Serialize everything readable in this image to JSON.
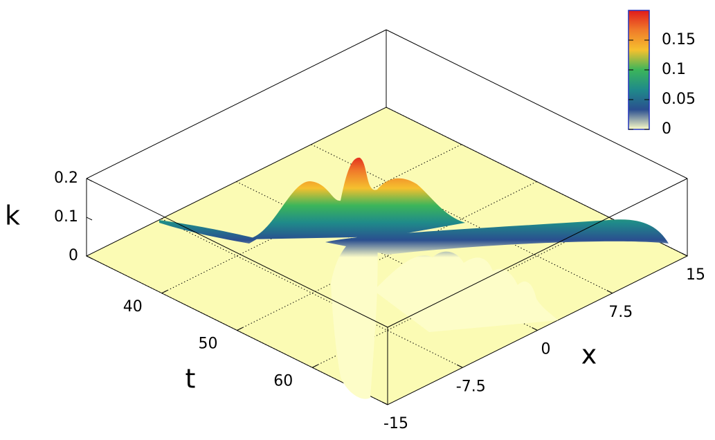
{
  "chart_data": {
    "type": "surface",
    "x_label": "t",
    "y_label": "x",
    "z_label": "k",
    "xlim": [
      30,
      70
    ],
    "xticks": [
      40,
      50,
      60
    ],
    "ylim": [
      -15,
      15
    ],
    "yticks": [
      -15,
      -7.5,
      0,
      7.5,
      15
    ],
    "zlim": [
      0,
      0.2
    ],
    "zticks": [
      0,
      0.1,
      0.2
    ],
    "colorbar": {
      "lim": [
        0,
        0.2
      ],
      "ticks": [
        0,
        0.05,
        0.1,
        0.15
      ],
      "palette": [
        "#fdfdc8",
        "#2a4f8f",
        "#1f8a8a",
        "#3cb55a",
        "#f5c02e",
        "#f07b2a",
        "#e01b1b"
      ]
    },
    "floor_color": "#fbfbb4",
    "grid": true
  }
}
